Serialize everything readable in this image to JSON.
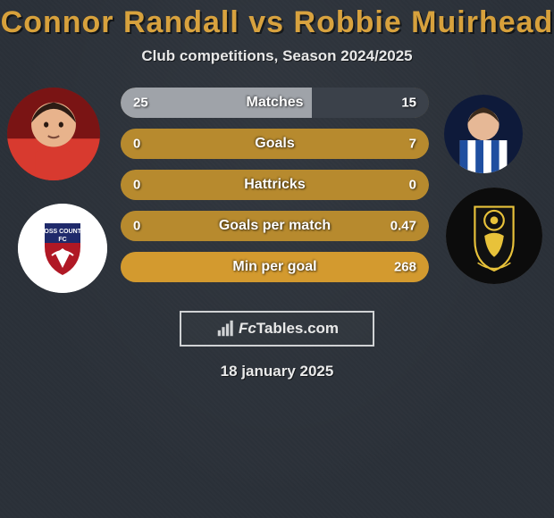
{
  "title_color": "#d7a03a",
  "background_color": "#2a3038",
  "player1": {
    "name": "Connor Randall",
    "shirt_color": "#d83a2f",
    "skin": "#e8b38c",
    "hair": "#2d1c14"
  },
  "player2": {
    "name": "Robbie Muirhead",
    "shirt_stripe_a": "#1f4fa0",
    "shirt_stripe_b": "#ffffff",
    "skin": "#e6b896",
    "hair": "#3a2a1c",
    "bg": "#0e1a3a"
  },
  "club1": {
    "bg": "#ffffff",
    "shield_top": "#1f2a6b",
    "shield_bottom": "#b01825",
    "text": "ROSS COUNTY"
  },
  "club2": {
    "bg": "#0c0c0c",
    "shield_fill": "#e8c23a",
    "ring": "#e8c23a"
  },
  "title": "Connor Randall vs Robbie Muirhead",
  "subtitle": "Club competitions, Season 2024/2025",
  "vs_word": "vs",
  "bar_style": {
    "empty": "#3b414a",
    "light": "#9fa3a9",
    "amber": "#b78a2e",
    "amber_bright": "#d39a2f",
    "height": 34,
    "radius": 17,
    "label_fontsize": 16,
    "gap": 12
  },
  "bars": [
    {
      "label": "Matches",
      "left": "25",
      "right": "15",
      "l_pct": 62,
      "r_pct": 38,
      "l_color": "#9fa3a9",
      "r_color": "#3b414a"
    },
    {
      "label": "Goals",
      "left": "0",
      "right": "7",
      "l_pct": 0,
      "r_pct": 100,
      "l_color": "#3b414a",
      "r_color": "#b78a2e"
    },
    {
      "label": "Hattricks",
      "left": "0",
      "right": "0",
      "l_pct": 0,
      "r_pct": 0,
      "l_color": "#b78a2e",
      "r_color": "#b78a2e"
    },
    {
      "label": "Goals per match",
      "left": "0",
      "right": "0.47",
      "l_pct": 0,
      "r_pct": 100,
      "l_color": "#3b414a",
      "r_color": "#b78a2e"
    },
    {
      "label": "Min per goal",
      "left": "",
      "right": "268",
      "l_pct": 0,
      "r_pct": 100,
      "l_color": "#3b414a",
      "r_color": "#d39a2f"
    }
  ],
  "brand": {
    "text_fc": "Fc",
    "text_rest": "Tables.com",
    "border": "#cfd1d3"
  },
  "date": "18 january 2025"
}
